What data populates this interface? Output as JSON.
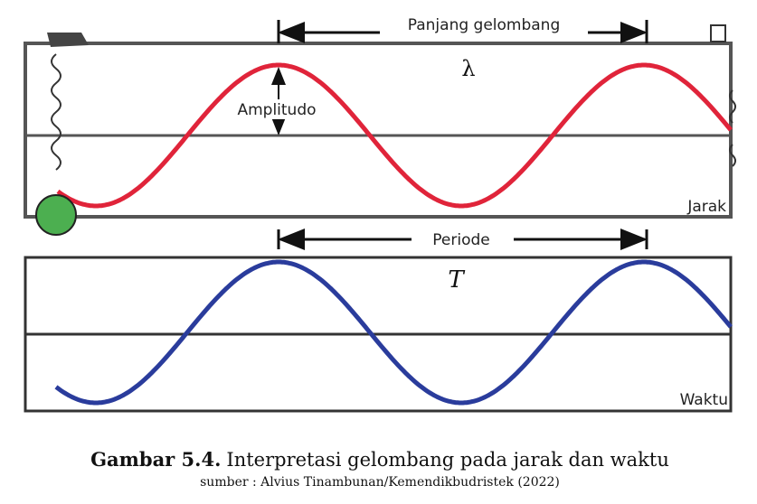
{
  "labels": {
    "wavelength": "Panjang gelombang",
    "lambda": "λ",
    "amplitude": "Amplitudo",
    "distance": "Jarak",
    "period": "Periode",
    "period_symbol": "T",
    "time": "Waktu"
  },
  "caption": {
    "number": "Gambar 5.4.",
    "text": "Interpretasi gelombang pada jarak dan waktu",
    "source": "sumber : Alvius Tinambunan/Kemendikbudristek (2022)"
  }
}
